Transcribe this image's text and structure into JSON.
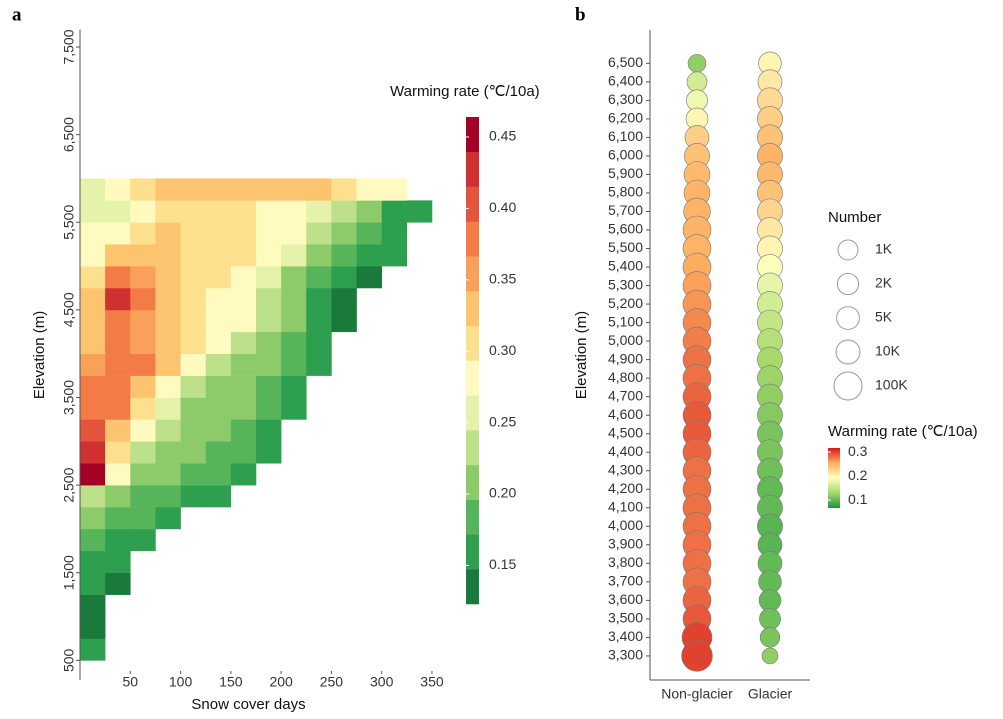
{
  "chart_data": [
    {
      "type": "heatmap",
      "panel": "a",
      "x_label": "Snow cover days",
      "y_label": "Elevation (m)",
      "xlim": [
        0,
        355
      ],
      "ylim": [
        390,
        7700
      ],
      "xticks": [
        50,
        100,
        150,
        200,
        250,
        300,
        350
      ],
      "yticks": [
        500,
        {
          "value": 1500,
          "label": "1,500"
        },
        {
          "value": 2500,
          "label": "2,500"
        },
        {
          "value": 3500,
          "label": "3,500"
        },
        {
          "value": 4500,
          "label": "4,500"
        },
        {
          "value": 5500,
          "label": "5,500"
        },
        {
          "value": 6500,
          "label": "6,500"
        },
        {
          "value": 7500,
          "label": "7,500"
        }
      ],
      "xbins": [
        0,
        25,
        50,
        75,
        100,
        125,
        150,
        175,
        200,
        225,
        250,
        275,
        300,
        325,
        350
      ],
      "ybins": [
        500,
        750,
        1000,
        1250,
        1500,
        1750,
        2000,
        2250,
        2500,
        2750,
        3000,
        3250,
        3500,
        3750,
        4000,
        4250,
        4500,
        4750,
        5000,
        5250,
        5500,
        5750,
        6000
      ],
      "z": [
        [
          0.15,
          null,
          null,
          null,
          null,
          null,
          null,
          null,
          null,
          null,
          null,
          null,
          null,
          null
        ],
        [
          0.14,
          null,
          null,
          null,
          null,
          null,
          null,
          null,
          null,
          null,
          null,
          null,
          null,
          null
        ],
        [
          0.14,
          null,
          null,
          null,
          null,
          null,
          null,
          null,
          null,
          null,
          null,
          null,
          null,
          null
        ],
        [
          0.15,
          0.14,
          null,
          null,
          null,
          null,
          null,
          null,
          null,
          null,
          null,
          null,
          null,
          null
        ],
        [
          0.16,
          0.15,
          null,
          null,
          null,
          null,
          null,
          null,
          null,
          null,
          null,
          null,
          null,
          null
        ],
        [
          0.19,
          0.17,
          0.16,
          null,
          null,
          null,
          null,
          null,
          null,
          null,
          null,
          null,
          null,
          null
        ],
        [
          0.21,
          0.19,
          0.18,
          0.17,
          null,
          null,
          null,
          null,
          null,
          null,
          null,
          null,
          null,
          null
        ],
        [
          0.23,
          0.21,
          0.19,
          0.18,
          0.17,
          0.16,
          null,
          null,
          null,
          null,
          null,
          null,
          null,
          null
        ],
        [
          0.44,
          0.27,
          0.22,
          0.2,
          0.19,
          0.18,
          0.17,
          null,
          null,
          null,
          null,
          null,
          null,
          null
        ],
        [
          0.42,
          0.3,
          0.24,
          0.21,
          0.2,
          0.19,
          0.18,
          0.17,
          null,
          null,
          null,
          null,
          null,
          null
        ],
        [
          0.41,
          0.34,
          0.27,
          0.23,
          0.21,
          0.2,
          0.19,
          0.17,
          null,
          null,
          null,
          null,
          null,
          null
        ],
        [
          0.39,
          0.37,
          0.31,
          0.25,
          0.22,
          0.21,
          0.2,
          0.18,
          0.16,
          null,
          null,
          null,
          null,
          null
        ],
        [
          0.37,
          0.38,
          0.34,
          0.28,
          0.24,
          0.22,
          0.21,
          0.19,
          0.16,
          null,
          null,
          null,
          null,
          null
        ],
        [
          0.36,
          0.38,
          0.37,
          0.32,
          0.27,
          0.24,
          0.22,
          0.2,
          0.18,
          0.15,
          null,
          null,
          null,
          null
        ],
        [
          0.34,
          0.38,
          0.36,
          0.33,
          0.3,
          0.27,
          0.24,
          0.21,
          0.18,
          0.15,
          null,
          null,
          null,
          null
        ],
        [
          0.33,
          0.39,
          0.36,
          0.34,
          0.31,
          0.29,
          0.27,
          0.23,
          0.2,
          0.16,
          0.14,
          null,
          null,
          null
        ],
        [
          0.32,
          0.42,
          0.37,
          0.33,
          0.31,
          0.29,
          0.28,
          0.24,
          0.21,
          0.17,
          0.14,
          null,
          null,
          null
        ],
        [
          0.31,
          0.37,
          0.35,
          0.33,
          0.31,
          0.3,
          0.29,
          0.26,
          0.22,
          0.19,
          0.16,
          0.14,
          null,
          null
        ],
        [
          0.29,
          0.33,
          0.34,
          0.33,
          0.31,
          0.3,
          0.3,
          0.28,
          0.25,
          0.22,
          0.19,
          0.16,
          0.15,
          null
        ],
        [
          0.27,
          0.29,
          0.31,
          0.32,
          0.31,
          0.3,
          0.3,
          0.29,
          0.27,
          0.24,
          0.21,
          0.18,
          0.16,
          null
        ],
        [
          0.25,
          0.26,
          0.28,
          0.3,
          0.31,
          0.31,
          0.3,
          0.29,
          0.28,
          0.26,
          0.23,
          0.2,
          0.17,
          0.16
        ],
        [
          0.25,
          0.27,
          0.3,
          0.32,
          0.33,
          0.34,
          0.33,
          0.33,
          0.34,
          0.33,
          0.31,
          0.29,
          0.27,
          null
        ]
      ],
      "colorbar": {
        "title": "Warming rate (℃/10a)",
        "lim": [
          0.123,
          0.464
        ],
        "ticks": [
          0.15,
          {
            "value": 0.2,
            "label": "0.20"
          },
          0.25,
          {
            "value": 0.3,
            "label": "0.30"
          },
          0.35,
          {
            "value": 0.4,
            "label": "0.40"
          },
          0.45
        ],
        "colors": [
          "#1a7a3c",
          "#2e9e4f",
          "#56b55a",
          "#8dcb6a",
          "#bde08a",
          "#e5f2aa",
          "#fffac0",
          "#fde08e",
          "#fcc46f",
          "#f9a05a",
          "#f27b47",
          "#e4533b",
          "#cf3030",
          "#a50026"
        ]
      }
    },
    {
      "type": "bubble",
      "panel": "b",
      "y_label": "Elevation (m)",
      "categories": [
        "Non-glacier",
        "Glacier"
      ],
      "ylim": [
        3170,
        6680
      ],
      "yticks": [
        {
          "value": 6500,
          "label": "6,500"
        },
        {
          "value": 6400,
          "label": "6,400"
        },
        {
          "value": 6300,
          "label": "6,300"
        },
        {
          "value": 6200,
          "label": "6,200"
        },
        {
          "value": 6100,
          "label": "6,100"
        },
        {
          "value": 6000,
          "label": "6,000"
        },
        {
          "value": 5900,
          "label": "5,900"
        },
        {
          "value": 5800,
          "label": "5,800"
        },
        {
          "value": 5700,
          "label": "5,700"
        },
        {
          "value": 5600,
          "label": "5,600"
        },
        {
          "value": 5500,
          "label": "5,500"
        },
        {
          "value": 5400,
          "label": "5,400"
        },
        {
          "value": 5300,
          "label": "5,300"
        },
        {
          "value": 5200,
          "label": "5,200"
        },
        {
          "value": 5100,
          "label": "5,100"
        },
        {
          "value": 5000,
          "label": "5,000"
        },
        {
          "value": 4900,
          "label": "4,900"
        },
        {
          "value": 4800,
          "label": "4,800"
        },
        {
          "value": 4700,
          "label": "4,700"
        },
        {
          "value": 4600,
          "label": "4,600"
        },
        {
          "value": 4500,
          "label": "4,500"
        },
        {
          "value": 4400,
          "label": "4,400"
        },
        {
          "value": 4300,
          "label": "4,300"
        },
        {
          "value": 4200,
          "label": "4,200"
        },
        {
          "value": 4100,
          "label": "4,100"
        },
        {
          "value": 4000,
          "label": "4,000"
        },
        {
          "value": 3900,
          "label": "3,900"
        },
        {
          "value": 3800,
          "label": "3,800"
        },
        {
          "value": 3700,
          "label": "3,700"
        },
        {
          "value": 3600,
          "label": "3,600"
        },
        {
          "value": 3500,
          "label": "3,500"
        },
        {
          "value": 3400,
          "label": "3,400"
        },
        {
          "value": 3300,
          "label": "3,300"
        }
      ],
      "y": [
        6500,
        6400,
        6300,
        6200,
        6100,
        6000,
        5900,
        5800,
        5700,
        5600,
        5500,
        5400,
        5300,
        5200,
        5100,
        5000,
        4900,
        4800,
        4700,
        4600,
        4500,
        4400,
        4300,
        4200,
        4100,
        4000,
        3900,
        3800,
        3700,
        3600,
        3500,
        3400,
        3300
      ],
      "series": [
        {
          "rates": [
            0.12,
            0.16,
            0.18,
            0.2,
            0.23,
            0.24,
            0.245,
            0.25,
            0.25,
            0.25,
            0.25,
            0.255,
            0.26,
            0.265,
            0.27,
            0.275,
            0.28,
            0.28,
            0.285,
            0.29,
            0.29,
            0.285,
            0.28,
            0.28,
            0.28,
            0.28,
            0.28,
            0.28,
            0.28,
            0.285,
            0.29,
            0.3,
            0.3
          ],
          "counts": [
            300,
            1000,
            2000,
            3000,
            10000,
            20000,
            30000,
            30000,
            50000,
            100000,
            100000,
            100000,
            100000,
            100000,
            100000,
            100000,
            100000,
            100000,
            100000,
            100000,
            100000,
            100000,
            100000,
            100000,
            100000,
            100000,
            100000,
            100000,
            100000,
            100000,
            100000,
            300000,
            500000
          ]
        },
        {
          "rates": [
            0.2,
            0.21,
            0.22,
            0.23,
            0.24,
            0.25,
            0.245,
            0.24,
            0.225,
            0.21,
            0.2,
            0.19,
            0.175,
            0.16,
            0.15,
            0.14,
            0.13,
            0.125,
            0.12,
            0.115,
            0.11,
            0.11,
            0.105,
            0.1,
            0.1,
            0.095,
            0.095,
            0.1,
            0.1,
            0.1,
            0.105,
            0.11,
            0.12
          ],
          "counts": [
            5000,
            10000,
            20000,
            20000,
            20000,
            20000,
            20000,
            20000,
            20000,
            20000,
            20000,
            20000,
            20000,
            20000,
            20000,
            20000,
            20000,
            20000,
            20000,
            20000,
            20000,
            20000,
            20000,
            20000,
            20000,
            20000,
            10000,
            10000,
            5000,
            3000,
            2000,
            800,
            100
          ]
        }
      ],
      "size_legend": {
        "title": "Number",
        "sizes": [
          {
            "value": 1000,
            "label": "1K"
          },
          {
            "value": 2000,
            "label": "2K"
          },
          {
            "value": 5000,
            "label": "5K"
          },
          {
            "value": 10000,
            "label": "10K"
          },
          {
            "value": 100000,
            "label": "100K"
          }
        ]
      },
      "colorbar": {
        "title": "Warming rate (℃/10a)",
        "lim": [
          0.067,
          0.317
        ],
        "ticks": [
          0.3,
          0.2,
          0.1
        ],
        "colors": [
          "#1a9641",
          "#a6d96a",
          "#ffffbf",
          "#fdae61",
          "#d7191c"
        ]
      }
    }
  ]
}
